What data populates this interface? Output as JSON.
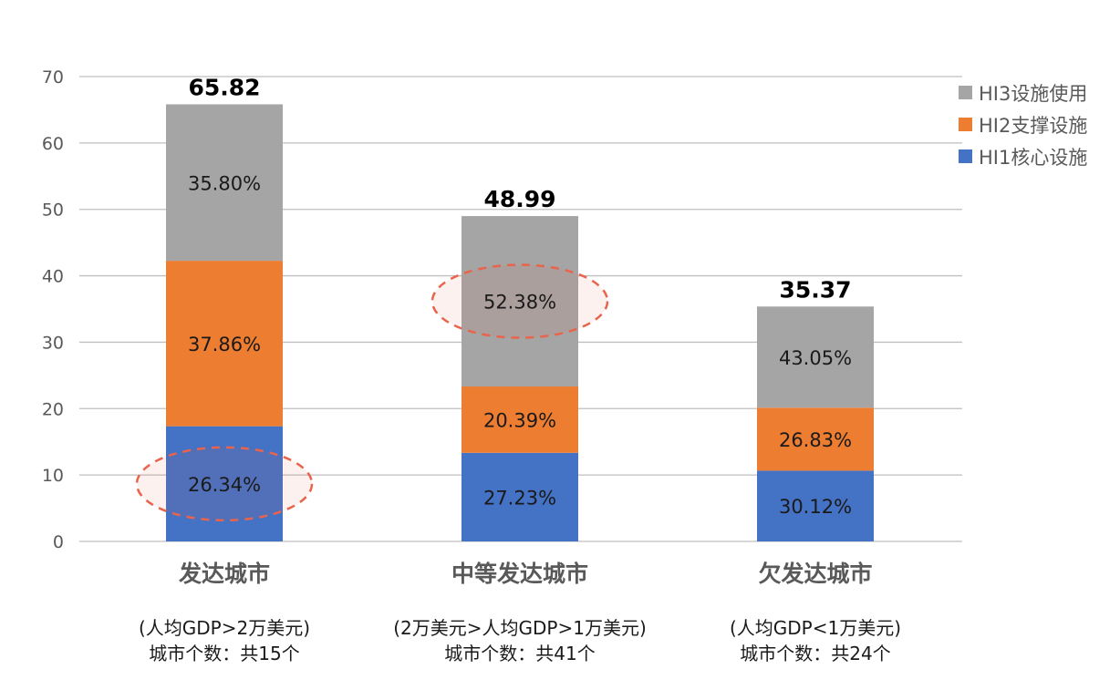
{
  "chart_data": {
    "type": "bar",
    "stacked": true,
    "ylim": [
      0,
      70
    ],
    "yticks": [
      0,
      10,
      20,
      30,
      40,
      50,
      60,
      70
    ],
    "grid": true,
    "legend_position": "top-right",
    "categories": [
      {
        "name": "发达城市",
        "sub1": "(人均GDP>2万美元)",
        "sub2": "城市个数：共15个",
        "total": 65.82,
        "total_label": "65.82"
      },
      {
        "name": "中等发达城市",
        "sub1": "(2万美元>人均GDP>1万美元)",
        "sub2": "城市个数：共41个",
        "total": 48.99,
        "total_label": "48.99"
      },
      {
        "name": "欠发达城市",
        "sub1": "(人均GDP<1万美元)",
        "sub2": "城市个数：共24个",
        "total": 35.37,
        "total_label": "35.37"
      }
    ],
    "series": [
      {
        "name": "HI1核心设施",
        "color": "#4472c4",
        "values": [
          17.34,
          13.34,
          10.65
        ],
        "labels": [
          "26.34%",
          "27.23%",
          "30.12%"
        ]
      },
      {
        "name": "HI2支撑设施",
        "color": "#ed7d31",
        "values": [
          24.92,
          9.99,
          9.49
        ],
        "labels": [
          "37.86%",
          "20.39%",
          "26.83%"
        ]
      },
      {
        "name": "HI3设施使用",
        "color": "#a5a5a5",
        "values": [
          23.56,
          25.66,
          15.23
        ],
        "labels": [
          "35.80%",
          "52.38%",
          "43.05%"
        ]
      }
    ],
    "legend_order": [
      "HI3设施使用",
      "HI2支撑设施",
      "HI1核心设施"
    ],
    "highlights": [
      {
        "category": 0,
        "series": 0
      },
      {
        "category": 1,
        "series": 2
      }
    ],
    "highlight_color": "#e8644c"
  }
}
